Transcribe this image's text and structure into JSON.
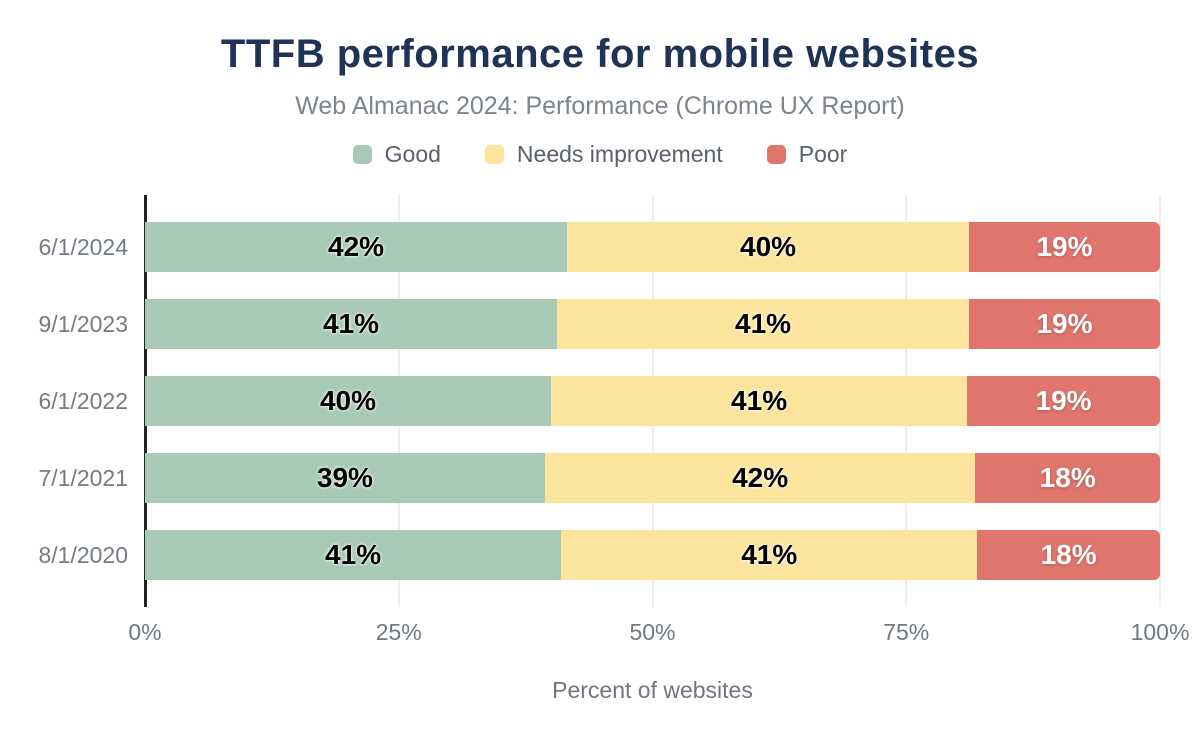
{
  "header": {
    "title": "TTFB performance for mobile websites",
    "subtitle": "Web Almanac 2024: Performance (Chrome UX Report)"
  },
  "colors": {
    "title": "#1e3355",
    "good": "#a7c9b6",
    "needs_improvement": "#fce49c",
    "poor": "#e0766e",
    "axis_line": "#222222",
    "gridline": "#ededed",
    "muted_text": "#757c82"
  },
  "chart_data": {
    "type": "bar",
    "orientation": "horizontal",
    "stacked": true,
    "title": "TTFB performance for mobile websites",
    "subtitle": "Web Almanac 2024: Performance (Chrome UX Report)",
    "categories": [
      "6/1/2024",
      "9/1/2023",
      "6/1/2022",
      "7/1/2021",
      "8/1/2020"
    ],
    "series": [
      {
        "name": "Good",
        "color": "#a7c9b6",
        "label_style": "dark",
        "values": [
          42,
          41,
          40,
          39,
          41
        ]
      },
      {
        "name": "Needs improvement",
        "color": "#fce49c",
        "label_style": "dark",
        "values": [
          40,
          41,
          41,
          42,
          41
        ]
      },
      {
        "name": "Poor",
        "color": "#e0766e",
        "label_style": "light",
        "values": [
          19,
          19,
          19,
          18,
          18
        ]
      }
    ],
    "value_suffix": "%",
    "xlabel": "Percent of websites",
    "ylabel": "",
    "xlim": [
      0,
      100
    ],
    "x_ticks": [
      "0%",
      "25%",
      "50%",
      "75%",
      "100%"
    ],
    "x_tick_percents": [
      0,
      25,
      50,
      75,
      100
    ],
    "grid": "vertical",
    "legend_position": "top"
  }
}
